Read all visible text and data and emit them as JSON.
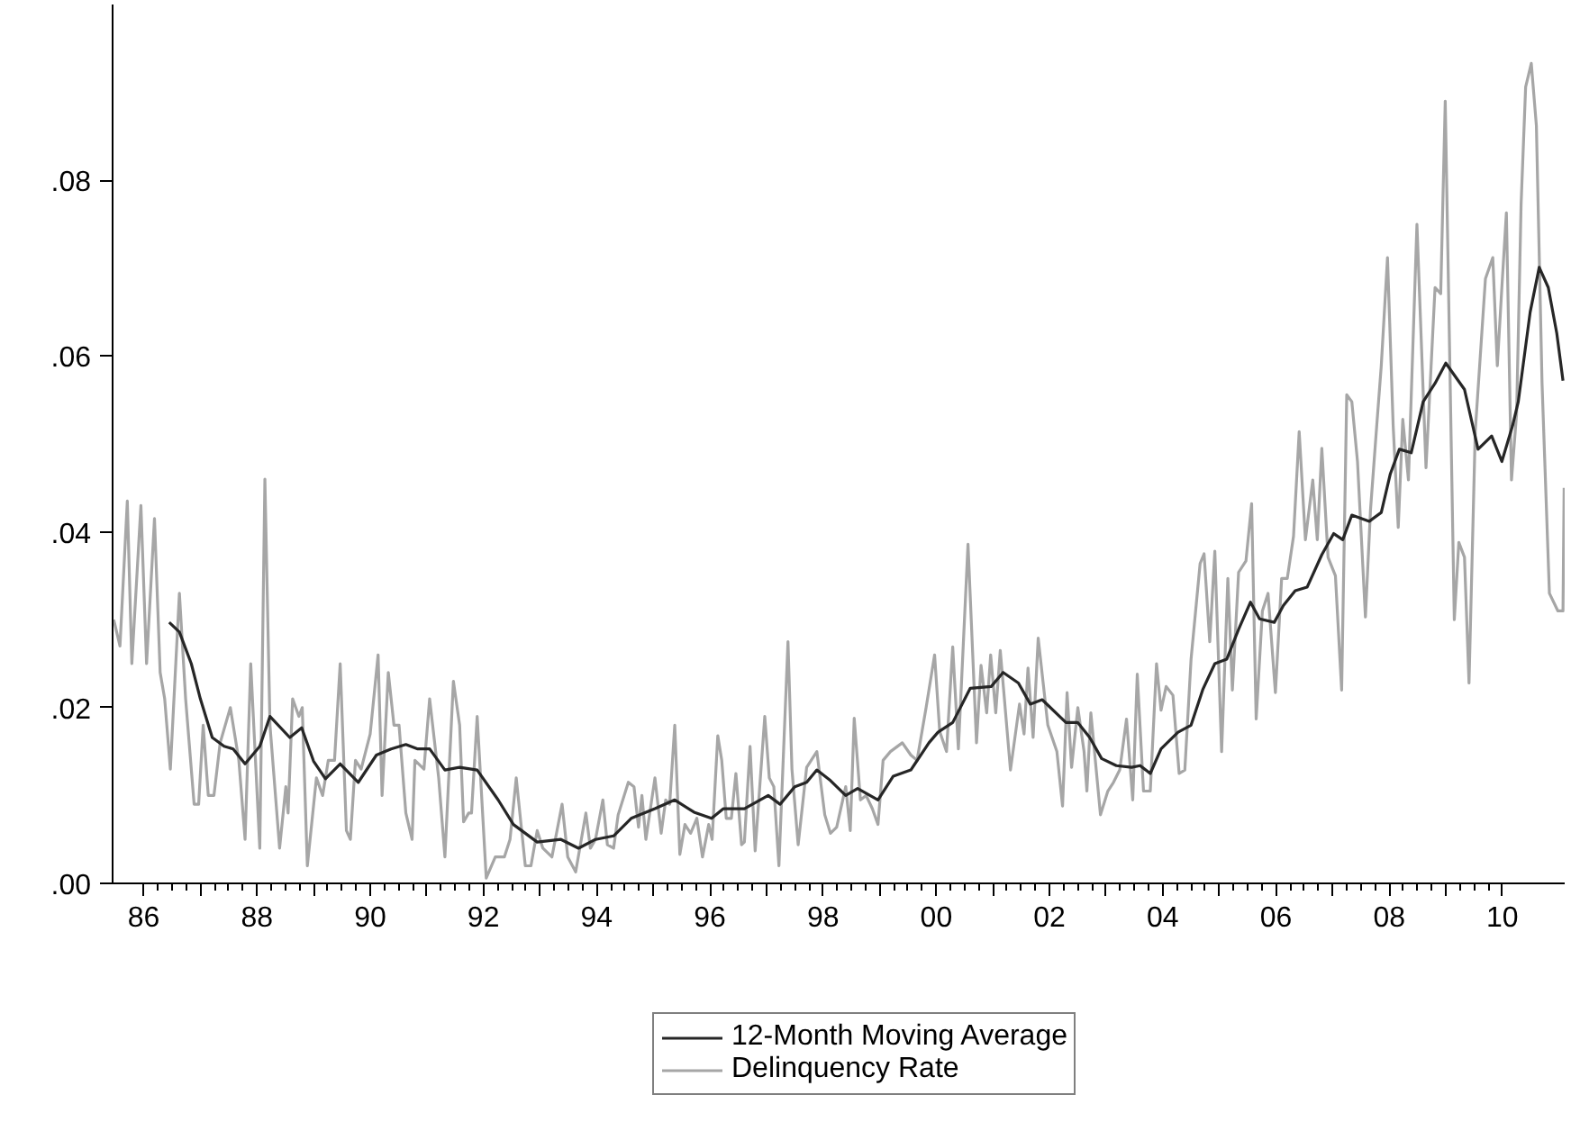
{
  "chart_data": {
    "type": "line",
    "xlim": [
      1985.45,
      2011.1
    ],
    "ylim": [
      0,
      0.1
    ],
    "xticks": [
      {
        "value": 1986,
        "label": "86"
      },
      {
        "value": 1987,
        "label": null
      },
      {
        "value": 1988,
        "label": "88"
      },
      {
        "value": 1989,
        "label": null
      },
      {
        "value": 1990,
        "label": "90"
      },
      {
        "value": 1991,
        "label": null
      },
      {
        "value": 1992,
        "label": "92"
      },
      {
        "value": 1993,
        "label": null
      },
      {
        "value": 1994,
        "label": "94"
      },
      {
        "value": 1995,
        "label": null
      },
      {
        "value": 1996,
        "label": "96"
      },
      {
        "value": 1997,
        "label": null
      },
      {
        "value": 1998,
        "label": "98"
      },
      {
        "value": 1999,
        "label": null
      },
      {
        "value": 2000,
        "label": "00"
      },
      {
        "value": 2001,
        "label": null
      },
      {
        "value": 2002,
        "label": "02"
      },
      {
        "value": 2003,
        "label": null
      },
      {
        "value": 2004,
        "label": "04"
      },
      {
        "value": 2005,
        "label": null
      },
      {
        "value": 2006,
        "label": "06"
      },
      {
        "value": 2007,
        "label": null
      },
      {
        "value": 2008,
        "label": "08"
      },
      {
        "value": 2009,
        "label": null
      },
      {
        "value": 2010,
        "label": "10"
      }
    ],
    "yticks": [
      {
        "value": 0,
        "label": ".00"
      },
      {
        "value": 0.02,
        "label": ".02"
      },
      {
        "value": 0.04,
        "label": ".04"
      },
      {
        "value": 0.06,
        "label": ".06"
      },
      {
        "value": 0.08,
        "label": ".08"
      }
    ],
    "grid": false,
    "legend": "bottom",
    "marker": "none",
    "line_style": "solid",
    "series": [
      {
        "name": "12-Month Moving Average",
        "color": "#262626",
        "x": [
          1986.45,
          1986.63,
          1986.84,
          1987.0,
          1987.21,
          1987.42,
          1987.58,
          1987.79,
          1988.05,
          1988.23,
          1988.58,
          1988.79,
          1989.0,
          1989.21,
          1989.47,
          1989.79,
          1990.11,
          1990.37,
          1990.63,
          1990.84,
          1991.05,
          1991.32,
          1991.58,
          1991.89,
          1992.26,
          1992.53,
          1992.95,
          1993.37,
          1993.68,
          1993.98,
          1994.3,
          1994.61,
          1995.03,
          1995.38,
          1995.72,
          1996.03,
          1996.24,
          1996.61,
          1997.03,
          1997.24,
          1997.5,
          1997.71,
          1997.89,
          1998.13,
          1998.4,
          1998.61,
          1998.97,
          1999.24,
          1999.55,
          1999.87,
          2000.03,
          2000.29,
          2000.6,
          2000.97,
          2001.18,
          2001.45,
          2001.66,
          2001.87,
          2002.29,
          2002.5,
          2002.71,
          2002.92,
          2003.18,
          2003.45,
          2003.6,
          2003.78,
          2003.97,
          2004.27,
          2004.5,
          2004.71,
          2004.92,
          2005.13,
          2005.34,
          2005.55,
          2005.71,
          2005.97,
          2006.13,
          2006.34,
          2006.55,
          2006.81,
          2007.02,
          2007.18,
          2007.34,
          2007.65,
          2007.86,
          2008.02,
          2008.18,
          2008.39,
          2008.6,
          2008.81,
          2009.0,
          2009.33,
          2009.57,
          2009.81,
          2009.99,
          2010.18,
          2010.28,
          2010.49,
          2010.65,
          2010.81,
          2010.96,
          2011.07
        ],
        "values": [
          0.0297,
          0.0286,
          0.025,
          0.021,
          0.0166,
          0.0156,
          0.0153,
          0.0136,
          0.0156,
          0.019,
          0.0166,
          0.0177,
          0.0139,
          0.0119,
          0.0136,
          0.0115,
          0.0146,
          0.0153,
          0.0158,
          0.0153,
          0.0153,
          0.0129,
          0.0132,
          0.0129,
          0.0095,
          0.0067,
          0.0047,
          0.005,
          0.004,
          0.005,
          0.0054,
          0.0074,
          0.0085,
          0.0095,
          0.0081,
          0.0074,
          0.0085,
          0.0085,
          0.01,
          0.009,
          0.011,
          0.0115,
          0.0129,
          0.0117,
          0.01,
          0.0108,
          0.0095,
          0.0122,
          0.0129,
          0.016,
          0.0172,
          0.0183,
          0.0222,
          0.0224,
          0.024,
          0.0228,
          0.0204,
          0.0209,
          0.0183,
          0.0183,
          0.0166,
          0.0142,
          0.0134,
          0.0132,
          0.0134,
          0.0125,
          0.0153,
          0.0172,
          0.018,
          0.0221,
          0.025,
          0.0255,
          0.0289,
          0.032,
          0.0301,
          0.0297,
          0.0316,
          0.0333,
          0.0337,
          0.0374,
          0.0398,
          0.0391,
          0.0419,
          0.0412,
          0.0422,
          0.0466,
          0.0494,
          0.049,
          0.0548,
          0.0569,
          0.0592,
          0.0562,
          0.0494,
          0.0509,
          0.048,
          0.0521,
          0.0548,
          0.065,
          0.0701,
          0.0678,
          0.0626,
          0.0572
        ]
      },
      {
        "name": "Delinquency Rate",
        "color": "#a6a6a6",
        "x": [
          1985.47,
          1985.58,
          1985.71,
          1985.79,
          1985.95,
          1986.05,
          1986.19,
          1986.29,
          1986.37,
          1986.47,
          1986.63,
          1986.74,
          1986.89,
          1986.97,
          1987.05,
          1987.14,
          1987.24,
          1987.35,
          1987.53,
          1987.68,
          1987.79,
          1987.89,
          1988.05,
          1988.14,
          1988.23,
          1988.4,
          1988.51,
          1988.55,
          1988.63,
          1988.74,
          1988.8,
          1988.89,
          1989.05,
          1989.16,
          1989.26,
          1989.37,
          1989.47,
          1989.58,
          1989.65,
          1989.74,
          1989.84,
          1990.0,
          1990.14,
          1990.21,
          1990.32,
          1990.42,
          1990.51,
          1990.63,
          1990.74,
          1990.79,
          1990.95,
          1991.05,
          1991.21,
          1991.32,
          1991.47,
          1991.58,
          1991.65,
          1991.74,
          1991.79,
          1991.89,
          1992.05,
          1992.21,
          1992.37,
          1992.47,
          1992.58,
          1992.74,
          1992.84,
          1992.95,
          1993.05,
          1993.21,
          1993.39,
          1993.49,
          1993.63,
          1993.81,
          1993.89,
          1993.98,
          1994.11,
          1994.19,
          1994.3,
          1994.38,
          1994.56,
          1994.66,
          1994.74,
          1994.8,
          1994.87,
          1995.03,
          1995.14,
          1995.22,
          1995.29,
          1995.38,
          1995.47,
          1995.56,
          1995.66,
          1995.77,
          1995.87,
          1995.98,
          1996.04,
          1996.14,
          1996.21,
          1996.29,
          1996.38,
          1996.46,
          1996.56,
          1996.61,
          1996.71,
          1996.8,
          1996.97,
          1997.05,
          1997.13,
          1997.22,
          1997.38,
          1997.45,
          1997.56,
          1997.71,
          1997.89,
          1998.03,
          1998.13,
          1998.24,
          1998.4,
          1998.48,
          1998.55,
          1998.66,
          1998.76,
          1998.87,
          1998.97,
          1999.06,
          1999.19,
          1999.4,
          1999.55,
          1999.66,
          1999.82,
          1999.97,
          2000.06,
          2000.18,
          2000.29,
          2000.39,
          2000.56,
          2000.71,
          2000.79,
          2000.89,
          2000.96,
          2001.05,
          2001.13,
          2001.31,
          2001.47,
          2001.55,
          2001.62,
          2001.71,
          2001.8,
          2001.97,
          2002.13,
          2002.23,
          2002.31,
          2002.39,
          2002.5,
          2002.61,
          2002.66,
          2002.73,
          2002.9,
          2003.03,
          2003.13,
          2003.24,
          2003.36,
          2003.47,
          2003.55,
          2003.66,
          2003.78,
          2003.89,
          2003.97,
          2004.06,
          2004.18,
          2004.29,
          2004.39,
          2004.5,
          2004.66,
          2004.73,
          2004.83,
          2004.92,
          2005.04,
          2005.15,
          2005.23,
          2005.34,
          2005.47,
          2005.57,
          2005.65,
          2005.76,
          2005.86,
          2005.99,
          2006.1,
          2006.2,
          2006.31,
          2006.41,
          2006.52,
          2006.65,
          2006.73,
          2006.81,
          2006.92,
          2007.05,
          2007.16,
          2007.25,
          2007.34,
          2007.44,
          2007.58,
          2007.67,
          2007.78,
          2007.86,
          2007.97,
          2008.07,
          2008.16,
          2008.24,
          2008.34,
          2008.49,
          2008.65,
          2008.81,
          2008.91,
          2008.99,
          2009.15,
          2009.23,
          2009.33,
          2009.41,
          2009.52,
          2009.7,
          2009.83,
          2009.91,
          2009.99,
          2010.07,
          2010.16,
          2010.25,
          2010.33,
          2010.41,
          2010.51,
          2010.6,
          2010.7,
          2010.83,
          2010.98,
          2011.07,
          2011.09
        ],
        "values": [
          0.03,
          0.027,
          0.0435,
          0.025,
          0.043,
          0.025,
          0.0415,
          0.024,
          0.021,
          0.013,
          0.033,
          0.021,
          0.009,
          0.009,
          0.018,
          0.01,
          0.01,
          0.016,
          0.02,
          0.014,
          0.005,
          0.025,
          0.004,
          0.046,
          0.018,
          0.004,
          0.011,
          0.008,
          0.021,
          0.019,
          0.02,
          0.002,
          0.012,
          0.01,
          0.014,
          0.014,
          0.025,
          0.006,
          0.005,
          0.014,
          0.013,
          0.017,
          0.026,
          0.01,
          0.024,
          0.018,
          0.018,
          0.008,
          0.005,
          0.014,
          0.013,
          0.021,
          0.012,
          0.003,
          0.023,
          0.018,
          0.007,
          0.008,
          0.008,
          0.019,
          0.0006,
          0.003,
          0.003,
          0.005,
          0.012,
          0.002,
          0.002,
          0.006,
          0.004,
          0.003,
          0.009,
          0.003,
          0.0013,
          0.008,
          0.004,
          0.005,
          0.0095,
          0.0044,
          0.004,
          0.0078,
          0.0115,
          0.011,
          0.0064,
          0.01,
          0.005,
          0.012,
          0.0057,
          0.0095,
          0.009,
          0.018,
          0.0033,
          0.0067,
          0.0057,
          0.0074,
          0.003,
          0.0067,
          0.005,
          0.0168,
          0.014,
          0.0074,
          0.0074,
          0.0125,
          0.0044,
          0.0047,
          0.0156,
          0.0037,
          0.019,
          0.012,
          0.011,
          0.002,
          0.0275,
          0.013,
          0.0044,
          0.0132,
          0.015,
          0.0078,
          0.0057,
          0.0064,
          0.011,
          0.006,
          0.0188,
          0.0095,
          0.01,
          0.0085,
          0.0067,
          0.014,
          0.015,
          0.016,
          0.0146,
          0.014,
          0.02,
          0.026,
          0.0173,
          0.015,
          0.0269,
          0.0153,
          0.0386,
          0.016,
          0.0248,
          0.0194,
          0.026,
          0.0194,
          0.0265,
          0.0129,
          0.0204,
          0.017,
          0.0245,
          0.0166,
          0.0279,
          0.018,
          0.015,
          0.0088,
          0.0217,
          0.0132,
          0.02,
          0.015,
          0.0105,
          0.0194,
          0.0078,
          0.0105,
          0.0115,
          0.0129,
          0.0187,
          0.0095,
          0.0238,
          0.0105,
          0.0105,
          0.025,
          0.0197,
          0.0224,
          0.0214,
          0.0125,
          0.0129,
          0.0255,
          0.0364,
          0.0375,
          0.0275,
          0.0378,
          0.015,
          0.0347,
          0.022,
          0.0354,
          0.0367,
          0.0432,
          0.0187,
          0.031,
          0.033,
          0.0217,
          0.0347,
          0.0347,
          0.0395,
          0.0514,
          0.0391,
          0.0459,
          0.0391,
          0.0495,
          0.0371,
          0.035,
          0.022,
          0.0556,
          0.0548,
          0.048,
          0.0303,
          0.0425,
          0.0521,
          0.0589,
          0.0712,
          0.0521,
          0.0405,
          0.0528,
          0.0459,
          0.075,
          0.0473,
          0.0678,
          0.0671,
          0.089,
          0.03,
          0.0388,
          0.0371,
          0.0228,
          0.0514,
          0.0688,
          0.0712,
          0.0589,
          0.0678,
          0.0763,
          0.0459,
          0.0534,
          0.0773,
          0.0906,
          0.0933,
          0.0862,
          0.0569,
          0.033,
          0.031,
          0.031,
          0.045
        ]
      }
    ]
  }
}
